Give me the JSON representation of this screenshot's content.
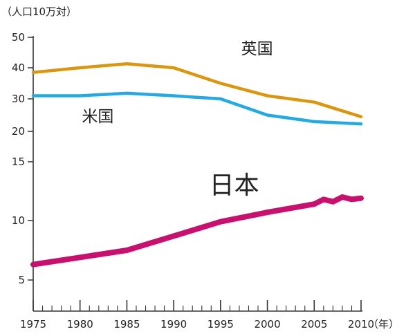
{
  "chart_data": {
    "type": "line",
    "y_unit_label": "（人口10万対）",
    "x_unit_label": "（年）",
    "y_scale": "piecewise",
    "y_ticks": [
      5,
      10,
      15,
      20,
      30,
      40,
      50
    ],
    "x_ticks": [
      1975,
      1980,
      1985,
      1990,
      1995,
      2000,
      2005,
      2010
    ],
    "ylim": [
      2.5,
      50
    ],
    "xlim": [
      1975,
      2010
    ],
    "series": [
      {
        "name": "英国",
        "color": "#D9960E",
        "x": [
          1975,
          1980,
          1985,
          1990,
          1995,
          2000,
          2005,
          2010
        ],
        "values": [
          38.5,
          40,
          41.3,
          40,
          35,
          31,
          29,
          24.5
        ]
      },
      {
        "name": "米国",
        "color": "#26A9E0",
        "x": [
          1975,
          1980,
          1985,
          1990,
          1995,
          2000,
          2005,
          2010
        ],
        "values": [
          31,
          31,
          31.8,
          31,
          30,
          25,
          23,
          22.3
        ]
      },
      {
        "name": "日本",
        "color": "#C8106E",
        "x": [
          1975,
          1980,
          1985,
          1990,
          1995,
          2000,
          2005,
          2006,
          2007,
          2008,
          2009,
          2010
        ],
        "values": [
          6.3,
          6.9,
          7.5,
          8.7,
          9.9,
          10.7,
          11.4,
          11.8,
          11.6,
          12.0,
          11.8,
          11.9
        ]
      }
    ]
  }
}
